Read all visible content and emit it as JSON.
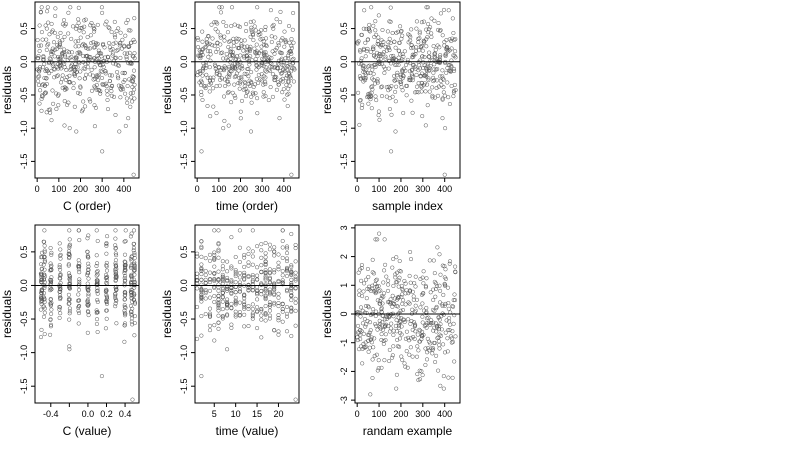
{
  "chart_data": [
    {
      "type": "scatter",
      "xlabel": "C (order)",
      "ylabel": "residuals",
      "xlim": [
        -10,
        470
      ],
      "ylim": [
        -1.75,
        0.9
      ],
      "xticks": [
        "0",
        "100",
        "200",
        "300",
        "400"
      ],
      "xtick_values": [
        0,
        100,
        200,
        300,
        400
      ],
      "yticks": [
        "-1.5",
        "-1.0",
        "-0.5",
        "0.0",
        "0.5"
      ],
      "ytick_values": [
        -1.5,
        -1.0,
        -0.5,
        0.0,
        0.5
      ],
      "reference_line_y": 0,
      "points": {
        "n": 450,
        "x_range": [
          0,
          450
        ],
        "y_center": 0.0,
        "y_spread": 0.35,
        "outliers": [
          [
            300,
            -1.35
          ],
          [
            445,
            -1.7
          ],
          [
            150,
            -1.0
          ],
          [
            420,
            -0.85
          ]
        ]
      }
    },
    {
      "type": "scatter",
      "xlabel": "time (order)",
      "ylabel": "residuals",
      "xlim": [
        -10,
        470
      ],
      "ylim": [
        -1.75,
        0.9
      ],
      "xticks": [
        "0",
        "100",
        "200",
        "300",
        "400"
      ],
      "xtick_values": [
        0,
        100,
        200,
        300,
        400
      ],
      "yticks": [
        "-1.5",
        "-1.0",
        "-0.5",
        "0.0",
        "0.5"
      ],
      "ytick_values": [
        -1.5,
        -1.0,
        -0.5,
        0.0,
        0.5
      ],
      "reference_line_y": 0,
      "points": {
        "n": 450,
        "x_range": [
          0,
          450
        ],
        "y_center": 0.0,
        "y_spread": 0.35,
        "outliers": [
          [
            20,
            -1.35
          ],
          [
            435,
            -1.7
          ],
          [
            120,
            -1.0
          ],
          [
            380,
            -0.85
          ]
        ]
      }
    },
    {
      "type": "scatter",
      "xlabel": "sample index",
      "ylabel": "residuals",
      "xlim": [
        -10,
        470
      ],
      "ylim": [
        -1.75,
        0.9
      ],
      "xticks": [
        "0",
        "100",
        "200",
        "300",
        "400"
      ],
      "xtick_values": [
        0,
        100,
        200,
        300,
        400
      ],
      "yticks": [
        "-1.5",
        "-1.0",
        "-0.5",
        "0.0",
        "0.5"
      ],
      "ytick_values": [
        -1.5,
        -1.0,
        -0.5,
        0.0,
        0.5
      ],
      "reference_line_y": 0,
      "points": {
        "n": 450,
        "x_range": [
          0,
          450
        ],
        "y_center": 0.0,
        "y_spread": 0.35,
        "outliers": [
          [
            155,
            -1.35
          ],
          [
            400,
            -1.7
          ],
          [
            10,
            -0.95
          ],
          [
            390,
            -0.85
          ]
        ]
      }
    },
    {
      "type": "scatter",
      "xlabel": "C (value)",
      "ylabel": "residuals",
      "xlim": [
        -0.57,
        0.55
      ],
      "ylim": [
        -1.75,
        0.9
      ],
      "xticks": [
        "-0.4",
        "0.0",
        "0.2",
        "0.4"
      ],
      "xtick_values": [
        -0.4,
        0.0,
        0.2,
        0.4
      ],
      "xtick_minor_values": [
        -0.2
      ],
      "yticks": [
        "-1.5",
        "-1.0",
        "-0.5",
        "0.0",
        "0.5"
      ],
      "ytick_values": [
        -1.5,
        -1.0,
        -0.5,
        0.0,
        0.5
      ],
      "reference_line_y": 0,
      "points": {
        "n": 450,
        "x_range": [
          -0.5,
          0.5
        ],
        "y_center": 0.0,
        "y_spread": 0.35,
        "outliers": [
          [
            0.15,
            -1.35
          ],
          [
            0.48,
            -1.7
          ],
          [
            -0.2,
            -0.95
          ]
        ]
      }
    },
    {
      "type": "scatter",
      "xlabel": "time (value)",
      "ylabel": "residuals",
      "xlim": [
        0.5,
        24.8
      ],
      "ylim": [
        -1.75,
        0.9
      ],
      "xticks": [
        "5",
        "10",
        "15",
        "20"
      ],
      "xtick_values": [
        5,
        10,
        15,
        20
      ],
      "yticks": [
        "-1.5",
        "-1.0",
        "-0.5",
        "0.0",
        "0.5"
      ],
      "ytick_values": [
        -1.5,
        -1.0,
        -0.5,
        0.0,
        0.5
      ],
      "reference_line_y": 0,
      "points": {
        "n": 450,
        "x_range": [
          1,
          24
        ],
        "y_center": 0.0,
        "y_spread": 0.35,
        "outliers": [
          [
            2,
            -1.35
          ],
          [
            24,
            -1.7
          ],
          [
            8,
            -0.95
          ]
        ]
      }
    },
    {
      "type": "scatter",
      "xlabel": "randam example",
      "ylabel": "residuals",
      "xlim": [
        -10,
        470
      ],
      "ylim": [
        -3.1,
        3.1
      ],
      "xticks": [
        "0",
        "100",
        "200",
        "300",
        "400"
      ],
      "xtick_values": [
        0,
        100,
        200,
        300,
        400
      ],
      "yticks": [
        "-3",
        "-2",
        "-1",
        "0",
        "1",
        "2",
        "3"
      ],
      "ytick_values": [
        -3,
        -2,
        -1,
        0,
        1,
        2,
        3
      ],
      "reference_line_y": 0,
      "points": {
        "n": 450,
        "x_range": [
          0,
          450
        ],
        "y_center": 0.0,
        "y_spread": 1.0,
        "outliers": [
          [
            60,
            -2.8
          ],
          [
            380,
            -2.5
          ],
          [
            100,
            2.8
          ]
        ]
      }
    }
  ]
}
